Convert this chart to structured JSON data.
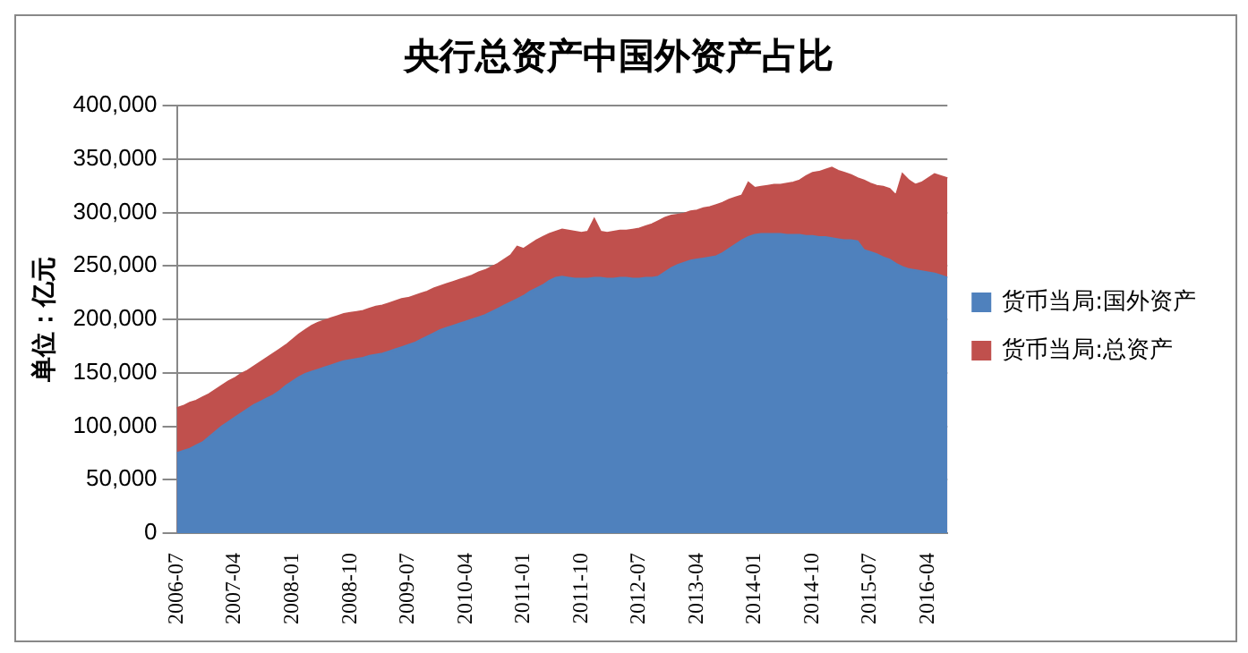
{
  "chart_data": {
    "type": "area",
    "title": "央行总资产中国外资产占比",
    "ylabel": "单位：亿元",
    "categories": [
      "2006-07",
      null,
      null,
      null,
      null,
      null,
      null,
      null,
      null,
      "2007-04",
      null,
      null,
      null,
      null,
      null,
      null,
      null,
      null,
      "2008-01",
      null,
      null,
      null,
      null,
      null,
      null,
      null,
      null,
      "2008-10",
      null,
      null,
      null,
      null,
      null,
      null,
      null,
      null,
      "2009-07",
      null,
      null,
      null,
      null,
      null,
      null,
      null,
      null,
      "2010-04",
      null,
      null,
      null,
      null,
      null,
      null,
      null,
      null,
      "2011-01",
      null,
      null,
      null,
      null,
      null,
      null,
      null,
      null,
      "2011-10",
      null,
      null,
      null,
      null,
      null,
      null,
      null,
      null,
      "2012-07",
      null,
      null,
      null,
      null,
      null,
      null,
      null,
      null,
      "2013-04",
      null,
      null,
      null,
      null,
      null,
      null,
      null,
      null,
      "2014-01",
      null,
      null,
      null,
      null,
      null,
      null,
      null,
      null,
      "2014-10",
      null,
      null,
      null,
      null,
      null,
      null,
      null,
      null,
      "2015-07",
      null,
      null,
      null,
      null,
      null,
      null,
      null,
      null,
      "2016-04",
      null,
      null,
      null
    ],
    "series": [
      {
        "name": "货币当局:总资产",
        "color": "#c0504d",
        "values": [
          117000,
          119000,
          122000,
          124000,
          127000,
          130000,
          134000,
          138000,
          142000,
          145000,
          149000,
          152000,
          156000,
          160000,
          164000,
          168000,
          172000,
          176000,
          181000,
          186000,
          190000,
          194000,
          197000,
          199000,
          201000,
          203000,
          205000,
          206000,
          207000,
          208000,
          210000,
          212000,
          213000,
          215000,
          217000,
          219000,
          220000,
          222000,
          224000,
          226000,
          229000,
          231000,
          233000,
          235000,
          237000,
          239000,
          241000,
          244000,
          246000,
          249000,
          252000,
          256000,
          260000,
          268000,
          266000,
          270000,
          274000,
          277000,
          280000,
          282000,
          284000,
          283000,
          282000,
          281000,
          282000,
          294000,
          282000,
          281000,
          282000,
          283000,
          283000,
          284000,
          285000,
          287000,
          289000,
          292000,
          295000,
          297000,
          298000,
          299000,
          301000,
          302000,
          304000,
          305000,
          307000,
          309000,
          312000,
          314000,
          316000,
          328000,
          323000,
          324000,
          325000,
          326000,
          326000,
          327000,
          328000,
          330000,
          334000,
          337000,
          338000,
          340000,
          342000,
          339000,
          337000,
          335000,
          332000,
          330000,
          327000,
          325000,
          324000,
          322000,
          316000,
          336000,
          330000,
          326000,
          328000,
          332000,
          336000,
          334000,
          332000
        ]
      },
      {
        "name": "货币当局:国外资产",
        "color": "#4f81bd",
        "values": [
          75000,
          77000,
          79000,
          82000,
          85000,
          90000,
          95000,
          100000,
          104000,
          108000,
          112000,
          116000,
          120000,
          123000,
          126000,
          129000,
          133000,
          138000,
          142000,
          146000,
          149000,
          151000,
          153000,
          155000,
          157000,
          159000,
          161000,
          162000,
          163000,
          164000,
          166000,
          167000,
          168000,
          170000,
          172000,
          174000,
          176000,
          178000,
          181000,
          184000,
          187000,
          190000,
          192000,
          194000,
          196000,
          198000,
          200000,
          202000,
          204000,
          207000,
          210000,
          213000,
          216000,
          219000,
          222000,
          226000,
          229000,
          232000,
          236000,
          239000,
          240000,
          239000,
          238000,
          238000,
          238000,
          239000,
          239000,
          238000,
          238000,
          239000,
          239000,
          238000,
          238000,
          239000,
          239000,
          240000,
          244000,
          248000,
          251000,
          253000,
          255000,
          256000,
          257000,
          258000,
          259000,
          262000,
          266000,
          270000,
          274000,
          277000,
          279000,
          280000,
          280000,
          280000,
          280000,
          279000,
          279000,
          279000,
          278000,
          278000,
          277000,
          277000,
          276000,
          275000,
          274000,
          274000,
          273000,
          265000,
          263000,
          261000,
          258000,
          256000,
          252000,
          249000,
          247000,
          246000,
          245000,
          244000,
          243000,
          241000,
          239000
        ]
      }
    ],
    "ylim": [
      0,
      400000
    ],
    "yticks": [
      0,
      {
        "value": 50000,
        "label": "50,000"
      },
      {
        "value": 100000,
        "label": "100,000"
      },
      {
        "value": 150000,
        "label": "150,000"
      },
      {
        "value": 200000,
        "label": "200,000"
      },
      {
        "value": 250000,
        "label": "250,000"
      },
      {
        "value": 300000,
        "label": "300,000"
      },
      {
        "value": 350000,
        "label": "350,000"
      },
      {
        "value": 400000,
        "label": "400,000"
      }
    ],
    "grid": "y",
    "legend": "right"
  }
}
